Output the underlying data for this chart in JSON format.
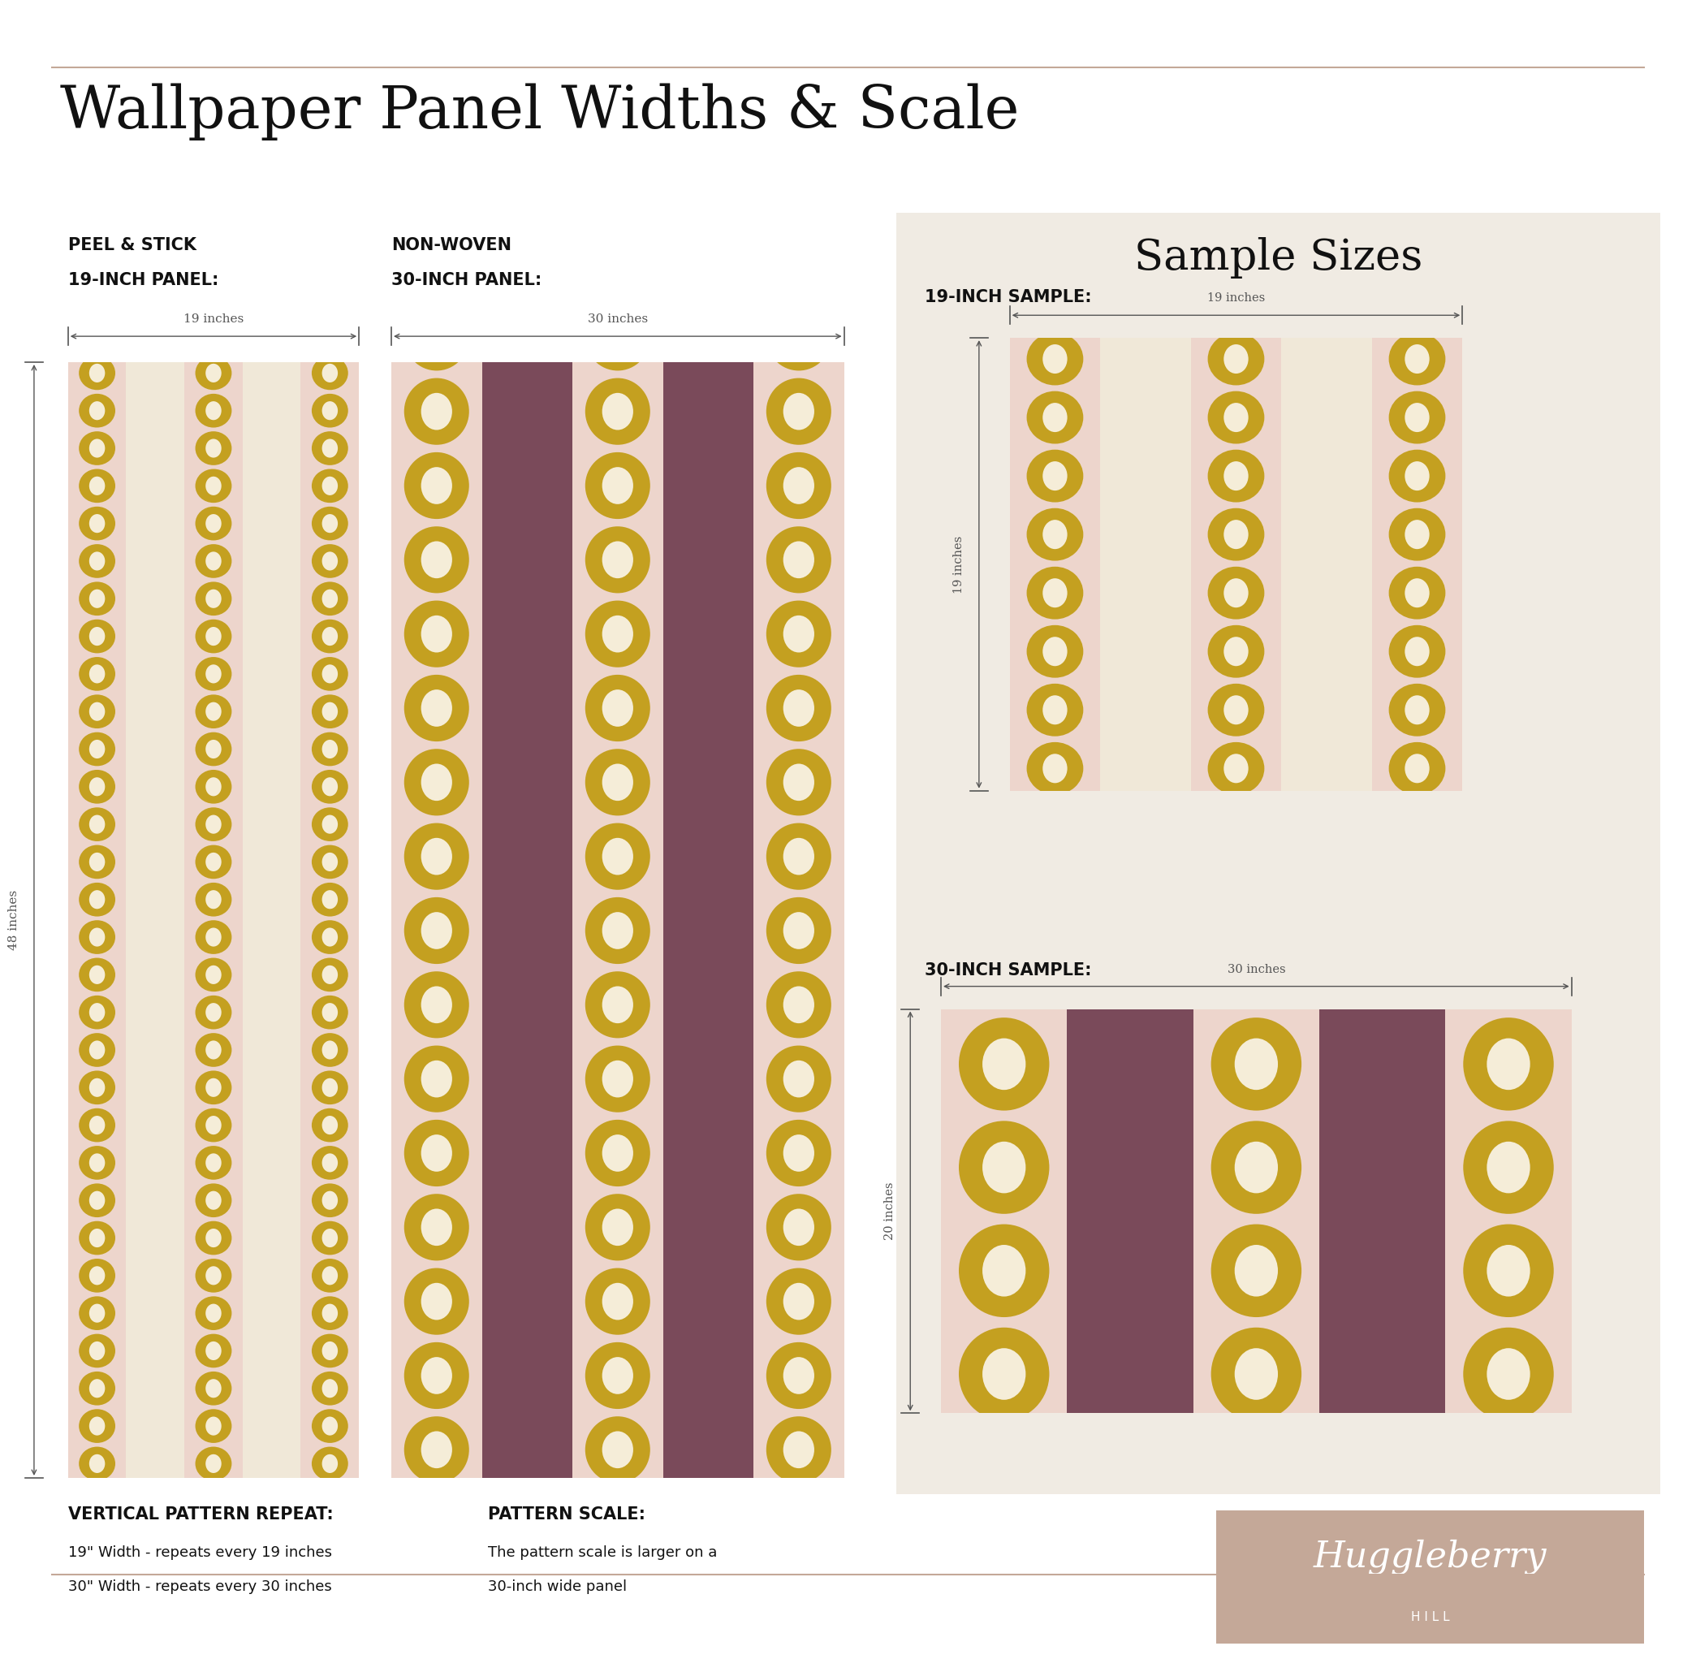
{
  "title": "Wallpaper Panel Widths & Scale",
  "bg_color": "#FFFFFF",
  "panel_bg": "#F0EBE3",
  "colors": {
    "pink_light": "#E8C5BE",
    "mauve": "#7A4A5A",
    "gold": "#C4A020",
    "cream": "#F5EDD8",
    "stripe_light": "#EDD5CC",
    "stripe_cream": "#F0E8D8"
  },
  "label1_line1": "PEEL & STICK",
  "label1_line2": "19-INCH PANEL:",
  "label2_line1": "NON-WOVEN",
  "label2_line2": "30-INCH PANEL:",
  "dim_19": "19 inches",
  "dim_30": "30 inches",
  "dim_48": "48 inches",
  "dim_20": "20 inches",
  "sample_sizes_title": "Sample Sizes",
  "sample1_label": "19-INCH SAMPLE:",
  "sample2_label": "30-INCH SAMPLE:",
  "bottom_label1_title": "VERTICAL PATTERN REPEAT:",
  "bottom_label1_line1": "19\" Width - repeats every 19 inches",
  "bottom_label1_line2": "30\" Width - repeats every 30 inches",
  "bottom_label2_title": "PATTERN SCALE:",
  "bottom_label2_line1": "The pattern scale is larger on a",
  "bottom_label2_line2": "30-inch wide panel",
  "brand_line1": "Huggleberry",
  "brand_line2": "H I L L",
  "brand_bg": "#C4A898",
  "deco_line_color": "#C4A898",
  "arrow_color": "#555555",
  "text_color": "#111111"
}
